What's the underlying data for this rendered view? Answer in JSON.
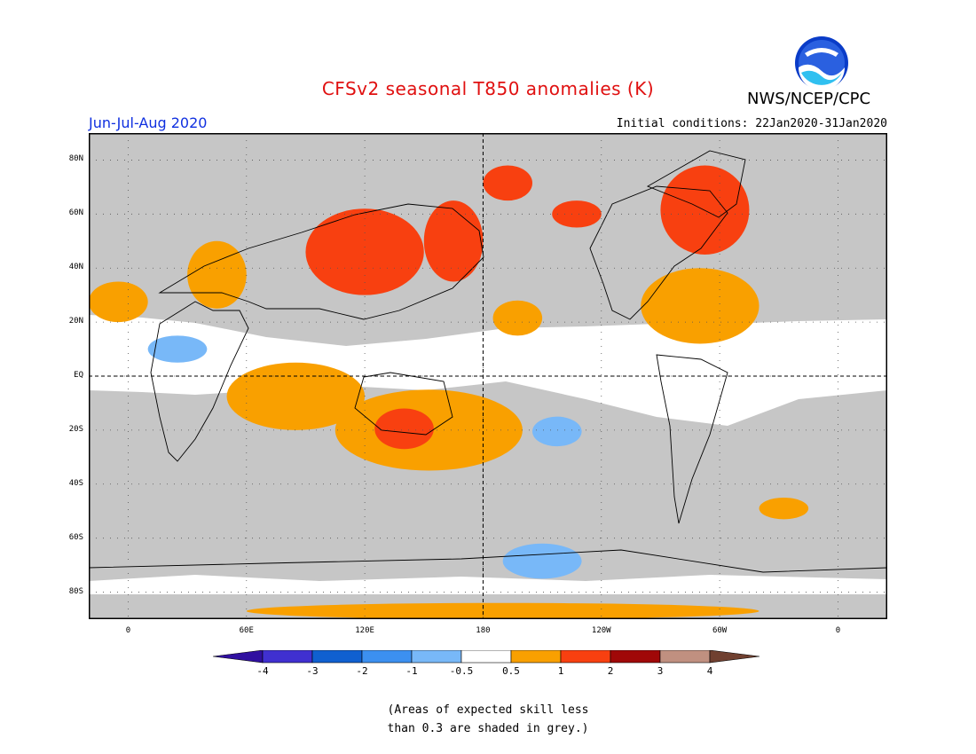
{
  "title": "CFSv2 seasonal T850 anomalies (K)",
  "period": "Jun-Jul-Aug 2020",
  "initial_conditions": "Initial conditions: 22Jan2020-31Jan2020",
  "agency": "NWS/NCEP/CPC",
  "logo_text": "NOAA",
  "lat_labels": [
    {
      "text": "80N",
      "lat": 80
    },
    {
      "text": "60N",
      "lat": 60
    },
    {
      "text": "40N",
      "lat": 40
    },
    {
      "text": "20N",
      "lat": 20
    },
    {
      "text": "EQ",
      "lat": 0
    },
    {
      "text": "20S",
      "lat": -20
    },
    {
      "text": "40S",
      "lat": -40
    },
    {
      "text": "60S",
      "lat": -60
    },
    {
      "text": "80S",
      "lat": -80
    }
  ],
  "lon_labels": [
    {
      "text": "0",
      "lon": 0
    },
    {
      "text": "60E",
      "lon": 60
    },
    {
      "text": "120E",
      "lon": 120
    },
    {
      "text": "180",
      "lon": 180
    },
    {
      "text": "120W",
      "lon": 240
    },
    {
      "text": "60W",
      "lon": 300
    },
    {
      "text": "0",
      "lon": 360
    }
  ],
  "map_extent": {
    "lon_min": -20,
    "lon_max": 385,
    "lat_min": -90,
    "lat_max": 90
  },
  "colorbar": {
    "labels": [
      "-4",
      "-3",
      "-2",
      "-1",
      "-0.5",
      "0.5",
      "1",
      "2",
      "3",
      "4"
    ],
    "colors": [
      "#3010a0",
      "#4030d0",
      "#1060d0",
      "#3c90f0",
      "#78b8f8",
      "#ffffff",
      "#f9a000",
      "#f84010",
      "#a00808",
      "#c09080",
      "#704030"
    ]
  },
  "colors": {
    "skill_grey": "#c6c6c6",
    "orange": "#f9a000",
    "red": "#f84010",
    "light_blue": "#78b8f8",
    "blue": "#3c90f0"
  },
  "anomaly_regions": [
    {
      "level": "0.5-1",
      "lon": [
        105,
        200
      ],
      "lat": [
        -35,
        -5
      ]
    },
    {
      "level": "0.5-1",
      "lon": [
        50,
        120
      ],
      "lat": [
        -20,
        5
      ]
    },
    {
      "level": "0.5-1",
      "lon": [
        30,
        60
      ],
      "lat": [
        25,
        50
      ]
    },
    {
      "level": "0.5-1",
      "lon": [
        185,
        210
      ],
      "lat": [
        15,
        28
      ]
    },
    {
      "level": "0.5-1",
      "lon": [
        260,
        320
      ],
      "lat": [
        12,
        40
      ]
    },
    {
      "level": "0.5-1",
      "lon": [
        -20,
        10
      ],
      "lat": [
        20,
        35
      ]
    },
    {
      "level": "0.5-1",
      "lon": [
        320,
        345
      ],
      "lat": [
        -53,
        -45
      ]
    },
    {
      "level": "0.5-1",
      "lon": [
        60,
        320
      ],
      "lat": [
        -90,
        -84
      ]
    },
    {
      "level": "1-2",
      "lon": [
        90,
        150
      ],
      "lat": [
        30,
        62
      ]
    },
    {
      "level": "1-2",
      "lon": [
        150,
        180
      ],
      "lat": [
        35,
        65
      ]
    },
    {
      "level": "1-2",
      "lon": [
        125,
        155
      ],
      "lat": [
        -27,
        -12
      ]
    },
    {
      "level": "1-2",
      "lon": [
        180,
        205
      ],
      "lat": [
        65,
        78
      ]
    },
    {
      "level": "1-2",
      "lon": [
        270,
        315
      ],
      "lat": [
        45,
        78
      ]
    },
    {
      "level": "1-2",
      "lon": [
        215,
        240
      ],
      "lat": [
        55,
        65
      ]
    },
    {
      "level": "-1--0.5",
      "lon": [
        205,
        230
      ],
      "lat": [
        -26,
        -15
      ]
    },
    {
      "level": "-1--0.5",
      "lon": [
        190,
        230
      ],
      "lat": [
        -75,
        -62
      ]
    },
    {
      "level": "-1--0.5",
      "lon": [
        10,
        40
      ],
      "lat": [
        5,
        15
      ]
    }
  ],
  "note_line1": "(Areas of expected skill less",
  "note_line2": "than 0.3 are shaded in grey.)"
}
